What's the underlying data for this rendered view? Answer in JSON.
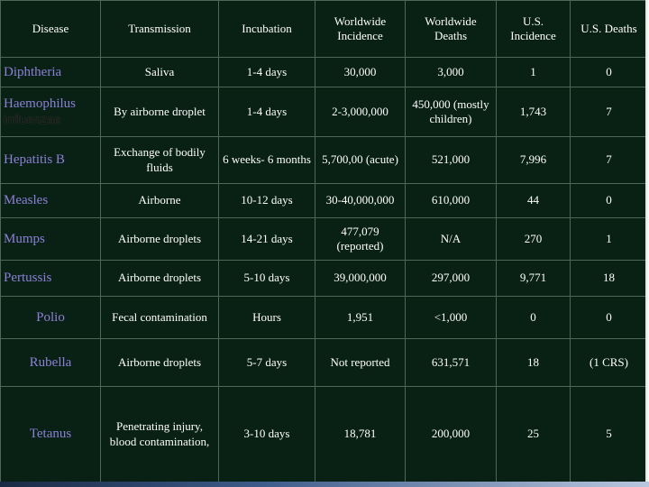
{
  "headers": {
    "disease": "Disease",
    "transmission": "Transmission",
    "incubation": "Incubation",
    "worldwide_incidence": "Worldwide Incidence",
    "worldwide_deaths": "Worldwide Deaths",
    "us_incidence": "U.S. Incidence",
    "us_deaths": "U.S. Deaths"
  },
  "rows": [
    {
      "disease": "Diphtheria",
      "transmission": "Saliva",
      "incubation": "1-4 days",
      "worldwide_incidence": "30,000",
      "worldwide_deaths": "3,000",
      "us_incidence": "1",
      "us_deaths": "0"
    },
    {
      "disease": "Haemophilus",
      "disease_sub": "influenzae",
      "transmission": "By airborne droplet",
      "incubation": "1-4 days",
      "worldwide_incidence": "2-3,000,000",
      "worldwide_deaths": "450,000 (mostly children)",
      "us_incidence": "1,743",
      "us_deaths": "7"
    },
    {
      "disease": "Hepatitis B",
      "transmission": "Exchange of bodily fluids",
      "incubation": "6 weeks- 6 months",
      "worldwide_incidence": "5,700,00 (acute)",
      "worldwide_deaths": "521,000",
      "us_incidence": "7,996",
      "us_deaths": "7"
    },
    {
      "disease": "Measles",
      "transmission": "Airborne",
      "incubation": "10-12 days",
      "worldwide_incidence": "30-40,000,000",
      "worldwide_deaths": "610,000",
      "us_incidence": "44",
      "us_deaths": "0"
    },
    {
      "disease": "Mumps",
      "transmission": "Airborne droplets",
      "incubation": "14-21 days",
      "worldwide_incidence": "477,079 (reported)",
      "worldwide_deaths": "N/A",
      "us_incidence": "270",
      "us_deaths": "1"
    },
    {
      "disease": "Pertussis",
      "transmission": "Airborne droplets",
      "incubation": "5-10 days",
      "worldwide_incidence": "39,000,000",
      "worldwide_deaths": "297,000",
      "us_incidence": "9,771",
      "us_deaths": "18"
    },
    {
      "disease": "Polio",
      "transmission": "Fecal contamination",
      "incubation": "Hours",
      "worldwide_incidence": "1,951",
      "worldwide_deaths": "<1,000",
      "us_incidence": "0",
      "us_deaths": "0"
    },
    {
      "disease": "Rubella",
      "transmission": "Airborne droplets",
      "incubation": "5-7 days",
      "worldwide_incidence": "Not reported",
      "worldwide_deaths": "631,571",
      "us_incidence": "18",
      "us_deaths": "(1 CRS)"
    },
    {
      "disease": "Tetanus",
      "transmission": "Penetrating injury, blood contamination,",
      "incubation": "3-10 days",
      "worldwide_incidence": "18,781",
      "worldwide_deaths": "200,000",
      "us_incidence": "25",
      "us_deaths": "5"
    }
  ]
}
